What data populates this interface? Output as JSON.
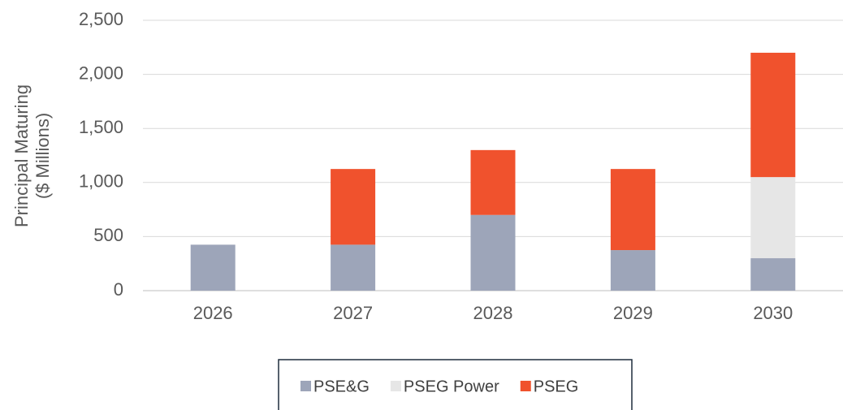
{
  "chart_data": {
    "type": "stacked_bar",
    "y_label": [
      "Principal Maturing",
      "($ Millions)"
    ],
    "categories": [
      "2026",
      "2027",
      "2028",
      "2029",
      "2030"
    ],
    "series": [
      {
        "name": "PSE&G",
        "color": "#9da5b9",
        "values": [
          425,
          425,
          700,
          375,
          300
        ]
      },
      {
        "name": "PSEG Power",
        "color": "#e6e6e6",
        "values": [
          0,
          0,
          0,
          0,
          750
        ]
      },
      {
        "name": "PSEG",
        "color": "#f0522d",
        "values": [
          0,
          700,
          600,
          750,
          1150
        ]
      }
    ],
    "ylim": [
      0,
      2500
    ],
    "yticks": [
      0,
      500,
      {
        "value": 1000,
        "label": "1,000"
      },
      {
        "value": 1500,
        "label": "1,500"
      },
      {
        "value": 2000,
        "label": "2,000"
      },
      {
        "value": 2500,
        "label": "2,500"
      }
    ],
    "grid": true,
    "legend": "bottom"
  }
}
